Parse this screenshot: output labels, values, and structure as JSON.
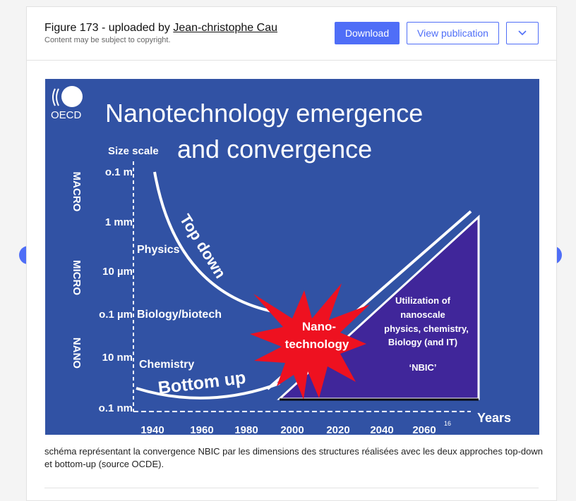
{
  "header": {
    "title_prefix": "Figure 173 - uploaded by ",
    "author": "Jean-christophe Cau",
    "subtitle": "Content may be subject to copyright.",
    "download": "Download",
    "view_publication": "View publication",
    "more_icon": "chevron-down-icon"
  },
  "figure": {
    "logo": "OECD",
    "title_line1": "Nanotechnology emergence",
    "title_line2": "and convergence",
    "y_axis_label": "Size scale",
    "y_ticks": [
      "o.1 m",
      "1 mm",
      "10 µm",
      "o.1 µm",
      "10 nm",
      "o.1 nm"
    ],
    "scale_bands": [
      "MACRO",
      "MICRO",
      "NANO"
    ],
    "x_ticks": [
      "1940",
      "1960",
      "1980",
      "2000",
      "2020",
      "2040",
      "2060"
    ],
    "x_axis_label": "Years",
    "slide_number": "16",
    "fields": [
      "Physics",
      "Biology/biotech",
      "Chemistry"
    ],
    "top_down": "Top down",
    "bottom_up": "Bottom up",
    "star_line1": "Nano-",
    "star_line2": "technology",
    "triangle_lines": [
      "Utilization of",
      "nanoscale",
      "physics, chemistry,",
      "Biology (and IT)"
    ],
    "nbic": "‘NBIC’",
    "colors": {
      "background": "#3152a4",
      "triangle": "#40269a",
      "star": "#ee1120"
    }
  },
  "caption": "schéma représentant la convergence NBIC par les dimensions des structures réalisées avec les deux approches top-down et bottom-up (source OCDE).",
  "nav": {
    "prev_icon": "chevron-left-icon",
    "next_icon": "chevron-right-icon"
  }
}
